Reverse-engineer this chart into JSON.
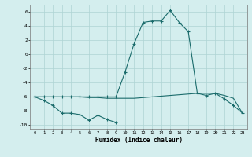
{
  "xlabel": "Humidex (Indice chaleur)",
  "x_all": [
    0,
    1,
    2,
    3,
    4,
    5,
    6,
    7,
    8,
    9,
    10,
    11,
    12,
    13,
    14,
    15,
    16,
    17,
    18,
    19,
    20,
    21,
    22,
    23
  ],
  "line1_x": [
    0,
    1,
    2,
    3,
    4,
    5,
    6,
    7,
    8,
    9
  ],
  "line1_y": [
    -6.0,
    -6.5,
    -7.2,
    -8.3,
    -8.3,
    -8.5,
    -9.3,
    -8.6,
    -9.2,
    -9.6
  ],
  "line2_x": [
    0,
    1,
    2,
    3,
    4,
    5,
    6,
    7,
    8,
    9,
    10,
    11,
    12,
    13,
    14,
    15,
    16,
    17,
    18,
    19,
    20,
    21,
    22,
    23
  ],
  "line2_y": [
    -6.0,
    -6.0,
    -6.0,
    -6.0,
    -6.0,
    -6.0,
    -6.1,
    -6.1,
    -6.2,
    -6.2,
    -6.2,
    -6.2,
    -6.1,
    -6.0,
    -5.9,
    -5.8,
    -5.7,
    -5.6,
    -5.5,
    -5.5,
    -5.5,
    -5.8,
    -6.2,
    -8.3
  ],
  "line3_x": [
    0,
    1,
    2,
    3,
    4,
    5,
    6,
    7,
    8,
    9,
    10,
    11,
    12,
    13,
    14,
    15,
    16,
    17,
    18,
    19,
    20,
    21,
    22,
    23
  ],
  "line3_y": [
    -6.0,
    -6.0,
    -6.0,
    -6.0,
    -6.0,
    -6.0,
    -6.0,
    -6.0,
    -6.0,
    -6.0,
    -2.5,
    1.5,
    4.5,
    4.7,
    4.7,
    6.2,
    4.5,
    3.2,
    -5.5,
    -5.8,
    -5.5,
    -6.3,
    -7.2,
    -8.3
  ],
  "bg_color": "#d4eeee",
  "grid_color": "#aed4d4",
  "line_color": "#1a6b6b",
  "xlim": [
    -0.5,
    23.5
  ],
  "ylim": [
    -10.5,
    7.0
  ],
  "yticks": [
    -10,
    -8,
    -6,
    -4,
    -2,
    0,
    2,
    4,
    6
  ],
  "xticks": [
    0,
    1,
    2,
    3,
    4,
    5,
    6,
    7,
    8,
    9,
    10,
    11,
    12,
    13,
    14,
    15,
    16,
    17,
    18,
    19,
    20,
    21,
    22,
    23
  ],
  "xtick_labels": [
    "0",
    "1",
    "2",
    "3",
    "4",
    "5",
    "6",
    "7",
    "8",
    "9",
    "10",
    "11",
    "12",
    "13",
    "14",
    "15",
    "16",
    "17",
    "18",
    "19",
    "20",
    "21",
    "22",
    "23"
  ]
}
